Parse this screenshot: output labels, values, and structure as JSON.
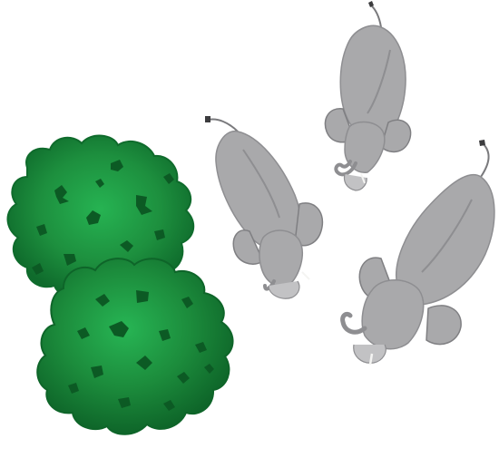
{
  "scene": {
    "description_label": "",
    "background_color": "#ffffff",
    "colors": {
      "elephant_body": "#a9a9ab",
      "elephant_shadow": "#8e8e91",
      "elephant_outline": "#5f5f62",
      "elephant_light": "#c2c2c4",
      "tusk": "#f4f4f2",
      "tail_tip": "#3c3c3e",
      "bush_dark": "#0f6b2c",
      "bush_mid": "#1d8f3e",
      "bush_light": "#24a94c",
      "bush_spot": "#0c5a24"
    },
    "elephants": [
      {
        "name": "elephant-top-right"
      },
      {
        "name": "elephant-middle"
      },
      {
        "name": "elephant-bottom-right"
      }
    ],
    "bushes": [
      {
        "name": "bush-top"
      },
      {
        "name": "bush-bottom"
      }
    ]
  }
}
